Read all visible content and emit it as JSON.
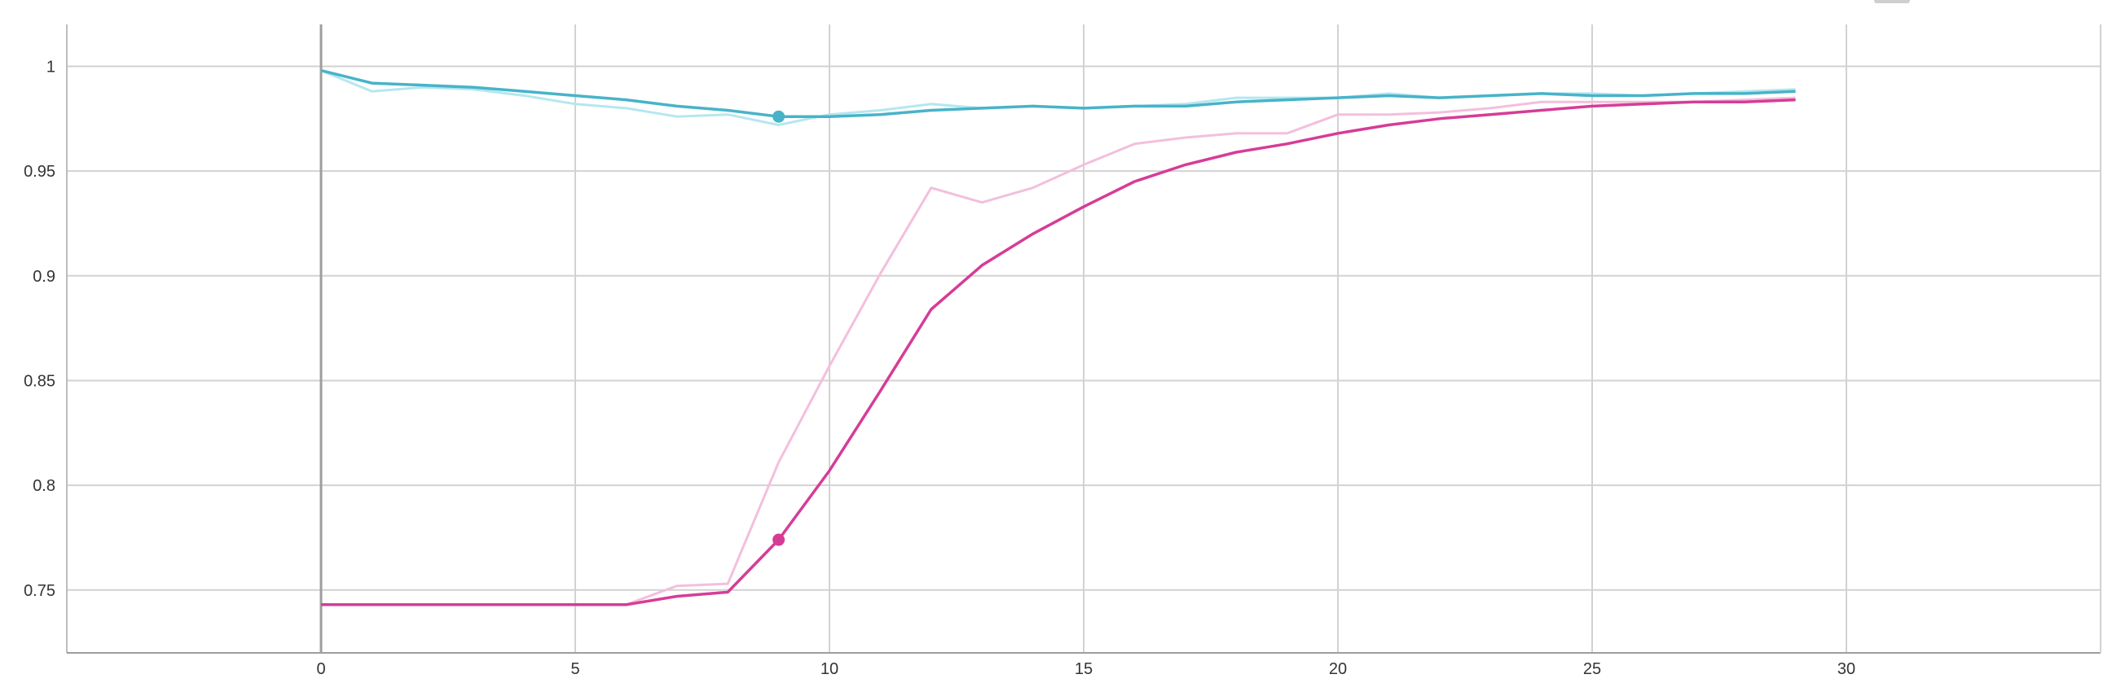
{
  "chart_data": {
    "type": "line",
    "title": "",
    "xlabel": "",
    "ylabel": "",
    "x_ticks": [
      0,
      5,
      10,
      15,
      20,
      25,
      30
    ],
    "y_ticks": [
      0.75,
      0.8,
      0.85,
      0.9,
      0.95,
      1
    ],
    "y_tick_labels": [
      "0.75",
      "0.8",
      "0.85",
      "0.9",
      "0.95",
      "1"
    ],
    "xlim": [
      -5,
      35
    ],
    "ylim": [
      0.72,
      1.02
    ],
    "grid": true,
    "series": [
      {
        "color": "#47b3c9",
        "color_raw": "#b5e7ef",
        "highlight_x": 9,
        "x": [
          0,
          1,
          2,
          3,
          4,
          5,
          6,
          7,
          8,
          9,
          10,
          11,
          12,
          13,
          14,
          15,
          16,
          17,
          18,
          19,
          20,
          21,
          22,
          23,
          24,
          25,
          26,
          27,
          28,
          29
        ],
        "raw": [
          0.998,
          0.988,
          0.99,
          0.989,
          0.986,
          0.982,
          0.98,
          0.976,
          0.977,
          0.972,
          0.977,
          0.979,
          0.982,
          0.98,
          0.981,
          0.98,
          0.981,
          0.982,
          0.985,
          0.985,
          0.985,
          0.987,
          0.985,
          0.986,
          0.987,
          0.987,
          0.986,
          0.987,
          0.988,
          0.989
        ],
        "smoothed": [
          0.998,
          0.992,
          0.991,
          0.99,
          0.988,
          0.986,
          0.984,
          0.981,
          0.979,
          0.976,
          0.976,
          0.977,
          0.979,
          0.98,
          0.981,
          0.98,
          0.981,
          0.981,
          0.983,
          0.984,
          0.985,
          0.986,
          0.985,
          0.986,
          0.987,
          0.986,
          0.986,
          0.987,
          0.987,
          0.988
        ]
      },
      {
        "color": "#d63c97",
        "color_raw": "#f3bfdc",
        "highlight_x": 9,
        "x": [
          0,
          1,
          2,
          3,
          4,
          5,
          6,
          7,
          8,
          9,
          10,
          11,
          12,
          13,
          14,
          15,
          16,
          17,
          18,
          19,
          20,
          21,
          22,
          23,
          24,
          25,
          26,
          27,
          28,
          29
        ],
        "raw": [
          0.743,
          0.743,
          0.743,
          0.743,
          0.743,
          0.743,
          0.743,
          0.752,
          0.753,
          0.811,
          0.857,
          0.901,
          0.942,
          0.935,
          0.942,
          0.953,
          0.963,
          0.966,
          0.968,
          0.968,
          0.977,
          0.977,
          0.978,
          0.98,
          0.983,
          0.983,
          0.983,
          0.983,
          0.984,
          0.985
        ],
        "smoothed": [
          0.743,
          0.743,
          0.743,
          0.743,
          0.743,
          0.743,
          0.743,
          0.747,
          0.749,
          0.774,
          0.807,
          0.845,
          0.884,
          0.905,
          0.92,
          0.933,
          0.945,
          0.953,
          0.959,
          0.963,
          0.968,
          0.972,
          0.975,
          0.977,
          0.979,
          0.981,
          0.982,
          0.983,
          0.983,
          0.984
        ]
      }
    ]
  }
}
